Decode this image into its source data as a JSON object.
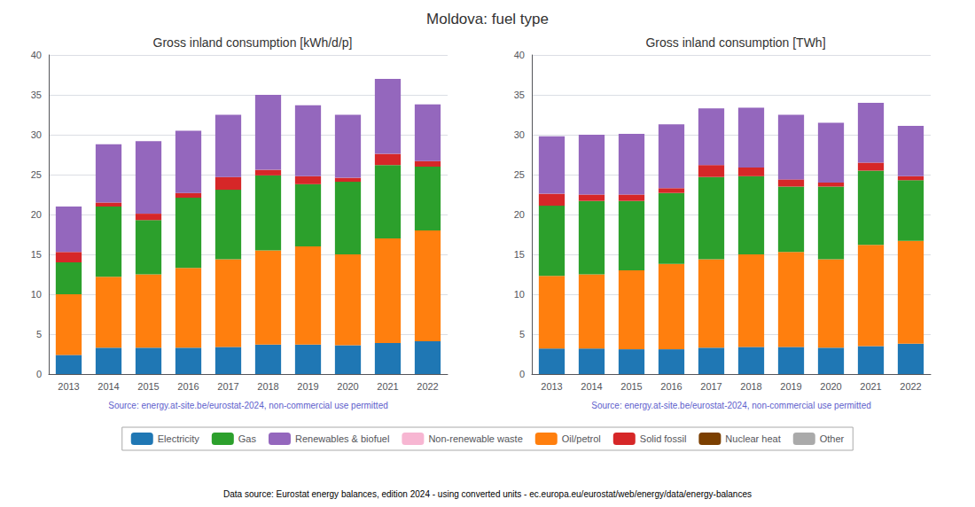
{
  "title": "Moldova: fuel type",
  "footnote": "Data source: Eurostat energy balances, edition 2024 - using converted units - ec.europa.eu/eurostat/web/energy/data/energy-balances",
  "legend": "bottom",
  "legend_order": [
    "Electricity",
    "Gas",
    "Renewables & biofuel",
    "Non-renewable waste",
    "Oil/petrol",
    "Solid fossil",
    "Nuclear heat",
    "Other"
  ],
  "chart_data": [
    {
      "type": "bar",
      "stacked": true,
      "grid": true,
      "title": "Gross inland consumption [kWh/d/p]",
      "annotations": [
        "Source: energy.at-site.be/eurostat-2024, non-commercial use permitted"
      ],
      "categories": [
        "2013",
        "2014",
        "2015",
        "2016",
        "2017",
        "2018",
        "2019",
        "2020",
        "2021",
        "2022"
      ],
      "ylim": [
        0,
        40
      ],
      "yticks": [
        0,
        5,
        10,
        15,
        20,
        25,
        30,
        35,
        40
      ],
      "series": [
        {
          "name": "Electricity",
          "color": "#1f77b4",
          "values": [
            2.4,
            3.3,
            3.3,
            3.3,
            3.4,
            3.7,
            3.7,
            3.6,
            3.9,
            4.1
          ]
        },
        {
          "name": "Oil/petrol",
          "color": "#ff7f0e",
          "values": [
            7.6,
            8.9,
            9.2,
            10.0,
            11.0,
            11.8,
            12.3,
            11.4,
            13.1,
            13.9
          ]
        },
        {
          "name": "Gas",
          "color": "#2ca02c",
          "values": [
            4.0,
            8.8,
            6.8,
            8.8,
            8.7,
            9.4,
            7.8,
            9.1,
            9.2,
            8.0
          ]
        },
        {
          "name": "Solid fossil",
          "color": "#d62728",
          "values": [
            1.3,
            0.5,
            0.8,
            0.6,
            1.6,
            0.7,
            1.0,
            0.5,
            1.4,
            0.7
          ]
        },
        {
          "name": "Nuclear heat",
          "color": "#7b3f00",
          "values": [
            0.0,
            0.0,
            0.0,
            0.0,
            0.0,
            0.0,
            0.0,
            0.0,
            0.0,
            0.0
          ]
        },
        {
          "name": "Renewables & biofuel",
          "color": "#9467bd",
          "values": [
            5.7,
            7.3,
            9.1,
            7.8,
            7.8,
            9.4,
            8.9,
            7.9,
            9.4,
            7.1
          ]
        },
        {
          "name": "Non-renewable waste",
          "color": "#f7b6d2",
          "values": [
            0.0,
            0.0,
            0.0,
            0.0,
            0.0,
            0.0,
            0.0,
            0.0,
            0.0,
            0.0
          ]
        },
        {
          "name": "Other",
          "color": "#aaaaaa",
          "values": [
            0.0,
            0.0,
            0.0,
            0.0,
            0.0,
            0.0,
            0.0,
            0.0,
            0.0,
            0.0
          ]
        }
      ]
    },
    {
      "type": "bar",
      "stacked": true,
      "grid": true,
      "title": "Gross inland consumption [TWh]",
      "annotations": [
        "Source: energy.at-site.be/eurostat-2024, non-commercial use permitted"
      ],
      "categories": [
        "2013",
        "2014",
        "2015",
        "2016",
        "2017",
        "2018",
        "2019",
        "2020",
        "2021",
        "2022"
      ],
      "ylim": [
        0,
        40
      ],
      "yticks": [
        0,
        5,
        10,
        15,
        20,
        25,
        30,
        35,
        40
      ],
      "series": [
        {
          "name": "Electricity",
          "color": "#1f77b4",
          "values": [
            3.2,
            3.2,
            3.1,
            3.1,
            3.3,
            3.4,
            3.4,
            3.3,
            3.5,
            3.8
          ]
        },
        {
          "name": "Oil/petrol",
          "color": "#ff7f0e",
          "values": [
            9.1,
            9.3,
            9.9,
            10.7,
            11.1,
            11.6,
            11.9,
            11.1,
            12.7,
            12.9
          ]
        },
        {
          "name": "Gas",
          "color": "#2ca02c",
          "values": [
            8.8,
            9.2,
            8.7,
            8.9,
            10.3,
            9.8,
            8.2,
            9.1,
            9.3,
            7.6
          ]
        },
        {
          "name": "Solid fossil",
          "color": "#d62728",
          "values": [
            1.5,
            0.8,
            0.8,
            0.6,
            1.5,
            1.1,
            0.9,
            0.5,
            1.0,
            0.5
          ]
        },
        {
          "name": "Nuclear heat",
          "color": "#7b3f00",
          "values": [
            0.0,
            0.0,
            0.0,
            0.0,
            0.0,
            0.0,
            0.0,
            0.0,
            0.0,
            0.0
          ]
        },
        {
          "name": "Renewables & biofuel",
          "color": "#9467bd",
          "values": [
            7.2,
            7.5,
            7.6,
            8.0,
            7.1,
            7.5,
            8.1,
            7.5,
            7.5,
            6.3
          ]
        },
        {
          "name": "Non-renewable waste",
          "color": "#f7b6d2",
          "values": [
            0.0,
            0.0,
            0.0,
            0.0,
            0.0,
            0.0,
            0.0,
            0.0,
            0.0,
            0.0
          ]
        },
        {
          "name": "Other",
          "color": "#aaaaaa",
          "values": [
            0.0,
            0.0,
            0.0,
            0.0,
            0.0,
            0.0,
            0.0,
            0.0,
            0.0,
            0.0
          ]
        }
      ]
    }
  ]
}
